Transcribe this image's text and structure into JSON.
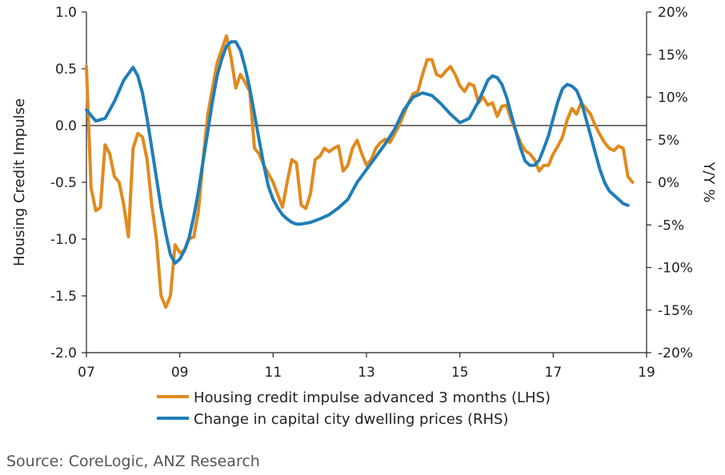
{
  "chart_data": {
    "type": "line",
    "title": "",
    "ylabel": "Housing Credit Impulse",
    "y2label": "Y/Y %",
    "ylim": [
      -2.0,
      1.0
    ],
    "y2lim": [
      -20,
      20
    ],
    "y_ticks": [
      "1.0",
      "0.5",
      "0.0",
      "-0.5",
      "-1.0",
      "-1.5",
      "-2.0"
    ],
    "y_tick_values": [
      1.0,
      0.5,
      0.0,
      -0.5,
      -1.0,
      -1.5,
      -2.0
    ],
    "y2_ticks": [
      "20%",
      "15%",
      "10%",
      "5%",
      "0%",
      "-5%",
      "-10%",
      "-15%",
      "-20%"
    ],
    "y2_tick_values": [
      20,
      15,
      10,
      5,
      0,
      -5,
      -10,
      -15,
      -20
    ],
    "x_ticks": [
      "07",
      "09",
      "11",
      "13",
      "15",
      "17",
      "19"
    ],
    "x_tick_values": [
      2007,
      2009,
      2011,
      2013,
      2015,
      2017,
      2019
    ],
    "xlim": [
      2007,
      2019
    ],
    "series": [
      {
        "name": "Housing credit impulse advanced 3 months (LHS)",
        "axis": "left",
        "color": "#E08A1E",
        "x": [
          2007.0,
          2007.1,
          2007.2,
          2007.3,
          2007.4,
          2007.5,
          2007.6,
          2007.7,
          2007.8,
          2007.9,
          2008.0,
          2008.1,
          2008.2,
          2008.3,
          2008.4,
          2008.5,
          2008.6,
          2008.7,
          2008.8,
          2008.9,
          2009.0,
          2009.1,
          2009.2,
          2009.3,
          2009.4,
          2009.5,
          2009.6,
          2009.8,
          2010.0,
          2010.1,
          2010.2,
          2010.3,
          2010.4,
          2010.5,
          2010.6,
          2010.7,
          2010.8,
          2011.0,
          2011.2,
          2011.3,
          2011.4,
          2011.5,
          2011.6,
          2011.7,
          2011.8,
          2011.9,
          2012.0,
          2012.1,
          2012.2,
          2012.3,
          2012.4,
          2012.5,
          2012.6,
          2012.7,
          2012.8,
          2012.9,
          2013.0,
          2013.1,
          2013.2,
          2013.3,
          2013.4,
          2013.5,
          2013.7,
          2013.9,
          2014.0,
          2014.1,
          2014.2,
          2014.3,
          2014.4,
          2014.5,
          2014.6,
          2014.7,
          2014.8,
          2014.9,
          2015.0,
          2015.1,
          2015.2,
          2015.3,
          2015.4,
          2015.5,
          2015.6,
          2015.7,
          2015.8,
          2015.9,
          2016.0,
          2016.1,
          2016.2,
          2016.3,
          2016.4,
          2016.5,
          2016.6,
          2016.7,
          2016.8,
          2016.9,
          2017.0,
          2017.1,
          2017.2,
          2017.3,
          2017.4,
          2017.5,
          2017.6,
          2017.7,
          2017.8,
          2017.9,
          2018.0,
          2018.1,
          2018.2,
          2018.3,
          2018.4,
          2018.5,
          2018.6,
          2018.7
        ],
        "values": [
          0.52,
          -0.55,
          -0.75,
          -0.72,
          -0.17,
          -0.25,
          -0.45,
          -0.5,
          -0.7,
          -0.98,
          -0.2,
          -0.07,
          -0.1,
          -0.3,
          -0.7,
          -1.0,
          -1.5,
          -1.6,
          -1.5,
          -1.05,
          -1.12,
          -1.1,
          -1.0,
          -0.98,
          -0.75,
          -0.3,
          0.1,
          0.55,
          0.79,
          0.6,
          0.33,
          0.45,
          0.38,
          0.3,
          -0.2,
          -0.25,
          -0.35,
          -0.5,
          -0.72,
          -0.5,
          -0.3,
          -0.33,
          -0.7,
          -0.73,
          -0.6,
          -0.3,
          -0.27,
          -0.2,
          -0.23,
          -0.2,
          -0.18,
          -0.4,
          -0.35,
          -0.2,
          -0.13,
          -0.25,
          -0.35,
          -0.3,
          -0.2,
          -0.15,
          -0.12,
          -0.15,
          0.0,
          0.2,
          0.28,
          0.3,
          0.45,
          0.58,
          0.58,
          0.45,
          0.43,
          0.48,
          0.52,
          0.45,
          0.35,
          0.3,
          0.37,
          0.35,
          0.2,
          0.25,
          0.18,
          0.2,
          0.08,
          0.17,
          0.18,
          0.05,
          -0.05,
          -0.15,
          -0.22,
          -0.25,
          -0.3,
          -0.4,
          -0.35,
          -0.35,
          -0.25,
          -0.18,
          -0.1,
          0.05,
          0.15,
          0.1,
          0.2,
          0.15,
          0.1,
          0.0,
          -0.08,
          -0.15,
          -0.2,
          -0.22,
          -0.18,
          -0.2,
          -0.45,
          -0.5
        ]
      },
      {
        "name": "Change in capital city dwelling prices (RHS)",
        "axis": "right",
        "color": "#1F7EB8",
        "x": [
          2007.0,
          2007.2,
          2007.4,
          2007.6,
          2007.8,
          2008.0,
          2008.1,
          2008.2,
          2008.3,
          2008.4,
          2008.5,
          2008.6,
          2008.7,
          2008.8,
          2008.9,
          2009.0,
          2009.1,
          2009.2,
          2009.3,
          2009.4,
          2009.5,
          2009.6,
          2009.7,
          2009.8,
          2009.9,
          2010.0,
          2010.1,
          2010.2,
          2010.3,
          2010.4,
          2010.5,
          2010.6,
          2010.7,
          2010.8,
          2010.9,
          2011.0,
          2011.1,
          2011.2,
          2011.3,
          2011.4,
          2011.5,
          2011.6,
          2011.7,
          2011.8,
          2011.9,
          2012.0,
          2012.2,
          2012.4,
          2012.6,
          2012.8,
          2013.0,
          2013.2,
          2013.4,
          2013.6,
          2013.8,
          2014.0,
          2014.2,
          2014.4,
          2014.6,
          2014.8,
          2015.0,
          2015.2,
          2015.4,
          2015.6,
          2015.7,
          2015.8,
          2015.9,
          2016.0,
          2016.1,
          2016.2,
          2016.3,
          2016.4,
          2016.5,
          2016.6,
          2016.7,
          2016.8,
          2016.9,
          2017.0,
          2017.1,
          2017.2,
          2017.3,
          2017.4,
          2017.5,
          2017.6,
          2017.7,
          2017.8,
          2017.9,
          2018.0,
          2018.1,
          2018.2,
          2018.3,
          2018.4,
          2018.5,
          2018.6
        ],
        "values": [
          8.5,
          7.2,
          7.5,
          9.5,
          12.0,
          13.5,
          12.5,
          10.5,
          7.5,
          4.0,
          0.5,
          -3.0,
          -6.0,
          -8.5,
          -9.5,
          -9.0,
          -8.0,
          -6.5,
          -4.0,
          -1.0,
          2.5,
          6.0,
          9.5,
          12.5,
          14.5,
          16.0,
          16.5,
          16.5,
          15.5,
          13.5,
          11.0,
          8.0,
          5.0,
          2.0,
          -0.5,
          -2.0,
          -3.0,
          -3.8,
          -4.3,
          -4.7,
          -4.9,
          -4.9,
          -4.8,
          -4.7,
          -4.5,
          -4.3,
          -3.8,
          -3.0,
          -2.0,
          0.0,
          1.5,
          3.0,
          4.5,
          6.2,
          8.5,
          10.0,
          10.5,
          10.2,
          9.2,
          8.0,
          7.0,
          7.5,
          9.5,
          12.0,
          12.5,
          12.3,
          11.5,
          10.0,
          8.0,
          6.0,
          4.0,
          2.5,
          2.0,
          2.0,
          2.6,
          4.0,
          5.5,
          7.5,
          9.5,
          11.0,
          11.5,
          11.3,
          10.8,
          9.5,
          7.5,
          5.5,
          3.5,
          1.5,
          0.0,
          -1.0,
          -1.5,
          -2.0,
          -2.5,
          -2.7
        ]
      }
    ],
    "legend_position": "bottom",
    "zero_line": true,
    "grid": false
  },
  "source_text": "Source: CoreLogic, ANZ Research"
}
